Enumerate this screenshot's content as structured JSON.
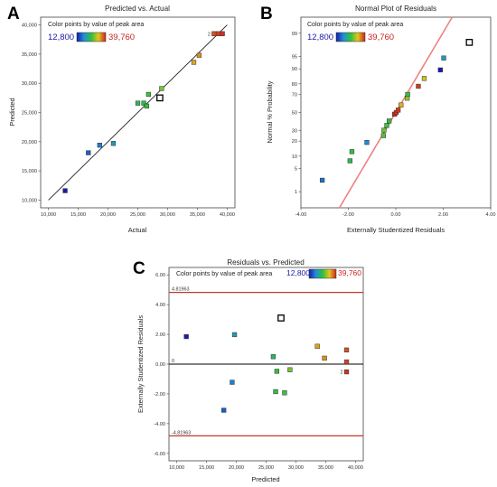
{
  "colors": {
    "low": "#1a1aaa",
    "high": "#cc2222",
    "fit_line": "#222222",
    "normal_line": "#f08080",
    "limit_line": "#c0392b",
    "zero_line": "#000000"
  },
  "legend": {
    "text": "Color points by value of peak area",
    "min_label": "12,800",
    "max_label": "39,760",
    "min_value": 12800,
    "max_value": 39760
  },
  "chart_data": [
    {
      "panel_label": "A",
      "type": "scatter",
      "title": "Predicted vs. Actual",
      "xlabel": "Actual",
      "ylabel": "Predicted",
      "xlim": [
        10000,
        40000
      ],
      "ylim": [
        10000,
        40000
      ],
      "xticks": [
        "10,000",
        "15,000",
        "20,000",
        "25,000",
        "30,000",
        "35,000",
        "40,000"
      ],
      "yticks": [
        "10,000",
        "15,000",
        "20,000",
        "25,000",
        "30,000",
        "35,000",
        "40,000"
      ],
      "fit_line": [
        [
          10000,
          10000
        ],
        [
          40000,
          40000
        ]
      ],
      "annotation": "2",
      "points": [
        {
          "x": 12800,
          "y": 11600,
          "c": 12800
        },
        {
          "x": 16700,
          "y": 18100,
          "c": 16700
        },
        {
          "x": 18600,
          "y": 19400,
          "c": 18600
        },
        {
          "x": 20900,
          "y": 19700,
          "c": 20900
        },
        {
          "x": 25000,
          "y": 26600,
          "c": 25000
        },
        {
          "x": 26000,
          "y": 26600,
          "c": 26000
        },
        {
          "x": 26500,
          "y": 26100,
          "c": 26500
        },
        {
          "x": 26800,
          "y": 28100,
          "c": 26800
        },
        {
          "x": 28700,
          "y": 27500,
          "c": 28700,
          "open": true
        },
        {
          "x": 29000,
          "y": 29100,
          "c": 29000
        },
        {
          "x": 34400,
          "y": 33600,
          "c": 34400
        },
        {
          "x": 35300,
          "y": 34800,
          "c": 35300
        },
        {
          "x": 37800,
          "y": 38500,
          "c": 37800
        },
        {
          "x": 38500,
          "y": 38500,
          "c": 38500
        },
        {
          "x": 39200,
          "y": 38500,
          "c": 39200
        }
      ]
    },
    {
      "panel_label": "B",
      "type": "scatter",
      "title": "Normal Plot of Residuals",
      "xlabel": "Externally Studentized Residuals",
      "ylabel": "Normal % Probability",
      "xlim": [
        -4,
        4
      ],
      "xticks": [
        "-4.00",
        "-2.00",
        "0.00",
        "2.00",
        "4.00"
      ],
      "yticks": [
        "1",
        "5",
        "10",
        "20",
        "30",
        "50",
        "70",
        "80",
        "90",
        "95",
        "99"
      ],
      "prob_ticks": [
        1,
        5,
        10,
        20,
        30,
        50,
        70,
        80,
        90,
        95,
        99
      ],
      "normal_line": [
        [
          -4.5,
          -5.3
        ],
        [
          4.5,
          5.3
        ]
      ],
      "points": [
        {
          "x": -3.1,
          "z": -1.99,
          "c": 17800
        },
        {
          "x": -1.93,
          "z": -1.42,
          "c": 25500
        },
        {
          "x": -1.85,
          "z": -1.15,
          "c": 26200
        },
        {
          "x": -1.22,
          "z": -0.88,
          "c": 19400
        },
        {
          "x": -0.52,
          "z": -0.68,
          "c": 27800
        },
        {
          "x": -0.5,
          "z": -0.52,
          "c": 28400
        },
        {
          "x": -0.38,
          "z": -0.38,
          "c": 27000
        },
        {
          "x": -0.28,
          "z": -0.25,
          "c": 25800
        },
        {
          "x": -0.05,
          "z": -0.05,
          "c": 39500
        },
        {
          "x": 0.02,
          "z": 0.0,
          "c": 39200
        },
        {
          "x": 0.1,
          "z": 0.07,
          "c": 38800
        },
        {
          "x": 0.22,
          "z": 0.22,
          "c": 34000
        },
        {
          "x": 0.48,
          "z": 0.42,
          "c": 30500
        },
        {
          "x": 0.5,
          "z": 0.53,
          "c": 26500
        },
        {
          "x": 0.95,
          "z": 0.77,
          "c": 38700
        },
        {
          "x": 1.2,
          "z": 1.0,
          "c": 32000
        },
        {
          "x": 1.88,
          "z": 1.25,
          "c": 12800
        },
        {
          "x": 2.02,
          "z": 1.6,
          "c": 21000
        },
        {
          "x": 3.1,
          "z": 2.06,
          "c": 28000,
          "open": true
        }
      ]
    },
    {
      "panel_label": "C",
      "type": "scatter",
      "title": "Residuals vs. Predicted",
      "xlabel": "Predicted",
      "ylabel": "Externally Studentized Residuals",
      "xlim": [
        10000,
        40000
      ],
      "ylim": [
        -6.5,
        6.5
      ],
      "xticks": [
        "10,000",
        "15,000",
        "20,000",
        "25,000",
        "30,000",
        "35,000",
        "40,000"
      ],
      "yticks": [
        "6.00",
        "4.00",
        "2.00",
        "0.00",
        "-2.00",
        "-4.00",
        "-6.00"
      ],
      "upper_limit": 4.81963,
      "lower_limit": -4.81963,
      "upper_label": "4.81963",
      "lower_label": "-4.81963",
      "zero_label": "0",
      "annotation": "2",
      "points": [
        {
          "x": 11600,
          "y": 1.85,
          "c": 12800
        },
        {
          "x": 17900,
          "y": -3.1,
          "c": 16700
        },
        {
          "x": 19300,
          "y": -1.22,
          "c": 18600
        },
        {
          "x": 19700,
          "y": 1.98,
          "c": 20900
        },
        {
          "x": 26200,
          "y": 0.5,
          "c": 25000
        },
        {
          "x": 26600,
          "y": -1.85,
          "c": 26000
        },
        {
          "x": 26800,
          "y": -0.48,
          "c": 26500
        },
        {
          "x": 27500,
          "y": 3.1,
          "c": 28700,
          "open": true
        },
        {
          "x": 28100,
          "y": -1.93,
          "c": 26800
        },
        {
          "x": 29000,
          "y": -0.38,
          "c": 29000
        },
        {
          "x": 33600,
          "y": 1.2,
          "c": 34400
        },
        {
          "x": 34800,
          "y": 0.4,
          "c": 35300
        },
        {
          "x": 38500,
          "y": 0.95,
          "c": 37800
        },
        {
          "x": 38500,
          "y": 0.15,
          "c": 38500
        },
        {
          "x": 38500,
          "y": -0.52,
          "c": 39200
        }
      ]
    }
  ]
}
